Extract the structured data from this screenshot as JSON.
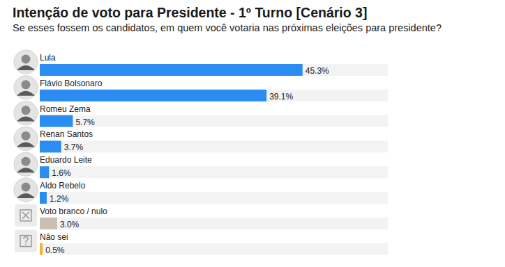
{
  "chart_data": {
    "type": "bar",
    "orientation": "horizontal",
    "title": "Intenção de voto para Presidente - 1º Turno [Cenário 3]",
    "subtitle": "Se esses fossem os candidatos, em quem você votaria nas próximas eleições para presidente?",
    "categories": [
      "Lula",
      "Flávio Bolsonaro",
      "Romeu Zema",
      "Renan Santos",
      "Eduardo Leite",
      "Aldo Rebelo",
      "Voto branco / nulo",
      "Não sei"
    ],
    "values": [
      45.3,
      39.1,
      5.7,
      3.7,
      1.6,
      1.2,
      3.0,
      0.5
    ],
    "value_labels": [
      "45.3%",
      "39.1%",
      "5.7%",
      "3.7%",
      "1.6%",
      "1.2%",
      "3.0%",
      "0.5%"
    ],
    "colors": [
      "#2b8cf2",
      "#2b8cf2",
      "#2b8cf2",
      "#2b8cf2",
      "#2b8cf2",
      "#2b8cf2",
      "#c9beb4",
      "#f0b437"
    ],
    "xlim": [
      0,
      60
    ],
    "data_labels": true,
    "tick_labels": false,
    "grid": false
  }
}
